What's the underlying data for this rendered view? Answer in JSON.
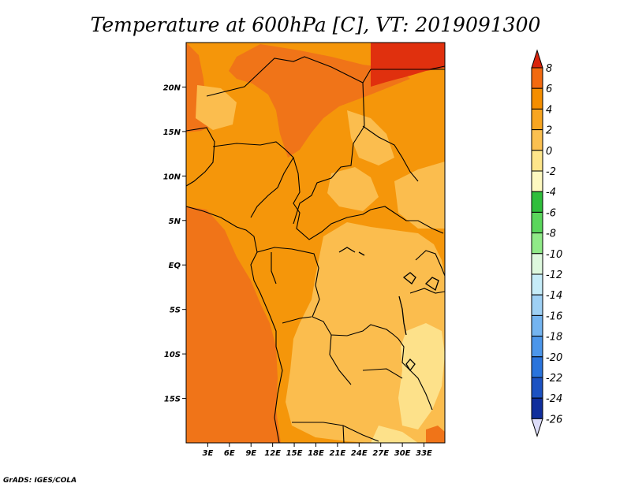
{
  "chart_data": {
    "type": "heatmap",
    "title": "Temperature at 600hPa [C], VT: 2019091300",
    "xlabel": "",
    "ylabel": "",
    "x_ticks": [
      "3E",
      "6E",
      "9E",
      "12E",
      "15E",
      "18E",
      "21E",
      "24E",
      "27E",
      "30E",
      "33E"
    ],
    "x_tick_values": [
      3,
      6,
      9,
      12,
      15,
      18,
      21,
      24,
      27,
      30,
      33
    ],
    "y_ticks": [
      "20N",
      "15N",
      "10N",
      "5N",
      "EQ",
      "5S",
      "10S",
      "15S"
    ],
    "y_tick_values": [
      20,
      15,
      10,
      5,
      0,
      -5,
      -10,
      -15
    ],
    "xlim": [
      0,
      35
    ],
    "ylim": [
      -20,
      25
    ],
    "units": "C",
    "colorbar": {
      "labels": [
        "8",
        "6",
        "4",
        "2",
        "0",
        "-2",
        "-4",
        "-6",
        "-8",
        "-10",
        "-12",
        "-14",
        "-16",
        "-18",
        "-20",
        "-22",
        "-24",
        "-26"
      ],
      "levels": [
        8,
        6,
        4,
        2,
        0,
        -2,
        -4,
        -6,
        -8,
        -10,
        -12,
        -14,
        -16,
        -18,
        -20,
        -22,
        -24,
        -26
      ],
      "colors": [
        "#e02a10",
        "#f26a10",
        "#f58e00",
        "#f8a520",
        "#fbc050",
        "#fde58a",
        "#fdf8c0",
        "#2fbe3c",
        "#5ad65c",
        "#90ea88",
        "#def8de",
        "#c6ecf8",
        "#9ed0f4",
        "#74b4f0",
        "#4c96ea",
        "#2a74dc",
        "#1c52c2",
        "#102e9c",
        "#0c1870"
      ],
      "top_arrow_color": "#d8240c",
      "bottom_arrow_color": "#dcdcf8"
    },
    "regions": [
      {
        "band": "6 to 8",
        "approx_lon": [
          25,
          35
        ],
        "approx_lat": [
          21,
          25
        ]
      },
      {
        "band": "4 to 6",
        "approx_lon": [
          10,
          24
        ],
        "approx_lat": [
          14,
          25
        ]
      },
      {
        "band": "4 to 6",
        "approx_lon": [
          0,
          10
        ],
        "approx_lat": [
          -20,
          5
        ]
      },
      {
        "band": "2 to 4",
        "approx_lon": [
          0,
          35
        ],
        "approx_lat": [
          -20,
          25
        ]
      },
      {
        "band": "0 to 2",
        "approx_lon": [
          12,
          35
        ],
        "approx_lat": [
          -20,
          5
        ]
      },
      {
        "band": "-2 to 0",
        "approx_lon": [
          27,
          35
        ],
        "approx_lat": [
          -20,
          -8
        ]
      }
    ]
  },
  "credit": "GrADS: IGES/COLA"
}
